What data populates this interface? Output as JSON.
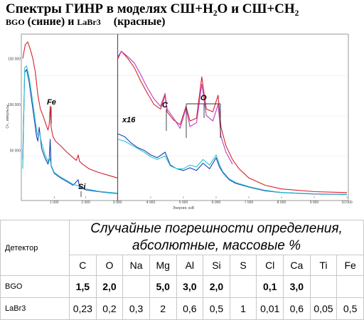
{
  "title": "Спектры ГИНР в моделях СШ+H₂O  и СШ+CH₂",
  "subtitle": {
    "bgo": "BGO",
    "blue": "(синие) и",
    "labr": "LaBr3",
    "red": "(красные)"
  },
  "chart_data": {
    "type": "line",
    "xlabel": "Энергия, кэВ",
    "ylabel": "Сч., импульсы",
    "panels": [
      {
        "xlim": [
          0,
          3000
        ],
        "x_ticks": [
          "1 000",
          "2 000",
          "3 000"
        ],
        "y_ticks": [
          "50 000",
          "100 000",
          "150 000"
        ],
        "ylim": [
          0,
          175000
        ],
        "annotations": [
          {
            "text": "Fe",
            "x": 850,
            "y": 128000
          },
          {
            "text": "Si",
            "x": 1780,
            "y": 45000
          }
        ],
        "series": [
          {
            "color": "#d6202e",
            "x": [
              0,
              80,
              160,
              240,
              320,
              400,
              480,
              560,
              640,
              720,
              800,
              840,
              870,
              900,
              960,
              1040,
              1200,
              1400,
              1600,
              1700,
              1760,
              1800,
              1900,
              2100,
              2400,
              2700,
              3000
            ],
            "y": [
              150000,
              165000,
              168000,
              160000,
              150000,
              135000,
              110000,
              95000,
              88000,
              80000,
              72000,
              78000,
              98000,
              75000,
              65000,
              60000,
              55000,
              48000,
              42000,
              39000,
              45000,
              38000,
              35000,
              30000,
              26000,
              23000,
              20000
            ]
          },
          {
            "color": "#1a3fb0",
            "x": [
              0,
              60,
              120,
              200,
              280,
              360,
              440,
              480,
              520,
              600,
              700,
              800,
              840,
              870,
              900,
              1000,
              1200,
              1400,
              1600,
              1760,
              1800,
              2000,
              2400,
              2800,
              3000
            ],
            "y": [
              40000,
              135000,
              138000,
              125000,
              105000,
              85000,
              65000,
              60000,
              75000,
              52000,
              42000,
              35000,
              40000,
              62000,
              33000,
              25000,
              20000,
              16000,
              12000,
              18000,
              10000,
              7000,
              5000,
              3500,
              3000
            ]
          },
          {
            "color": "#27c4d2",
            "x": [
              0,
              60,
              120,
              200,
              280,
              360,
              440,
              480,
              520,
              600,
              700,
              800,
              850,
              900,
              1000,
              1200,
              1400,
              1600,
              1800,
              2000,
              2400,
              2800,
              3000
            ],
            "y": [
              30000,
              140000,
              142000,
              130000,
              112000,
              92000,
              72000,
              66000,
              70000,
              58000,
              46000,
              38000,
              43000,
              34000,
              26000,
              21000,
              17000,
              13000,
              11000,
              8000,
              5500,
              4000,
              3500
            ]
          }
        ]
      },
      {
        "xlim": [
          3000,
          10000
        ],
        "x_ticks": [
          "4 000",
          "5 000",
          "6 000",
          "7 000",
          "8 000",
          "9 000",
          "10 000"
        ],
        "ylim": [
          0,
          175000
        ],
        "scale_label": "x16",
        "annotations": [
          {
            "text": "C",
            "x": 4440,
            "y": 140000
          },
          {
            "text": "O",
            "x": 5590,
            "y": 155000
          }
        ],
        "series": [
          {
            "color": "#d6202e",
            "x": [
              3000,
              3100,
              3300,
              3500,
              3700,
              3900,
              4100,
              4300,
              4440,
              4500,
              4700,
              4900,
              5080,
              5200,
              5400,
              5560,
              5620,
              5700,
              5900,
              6060,
              6150,
              6300,
              6500,
              6700,
              7000,
              7500,
              8000,
              9000,
              10000
            ],
            "y": [
              150000,
              158000,
              150000,
              140000,
              125000,
              112000,
              100000,
              95000,
              110000,
              92000,
              83000,
              78000,
              98000,
              82000,
              85000,
              130000,
              115000,
              95000,
              92000,
              110000,
              75000,
              55000,
              40000,
              30000,
              20000,
              12000,
              8000,
              5000,
              4000
            ]
          },
          {
            "color": "#b83fbf",
            "x": [
              3000,
              3100,
              3300,
              3500,
              3700,
              3900,
              4100,
              4300,
              4440,
              4500,
              4700,
              4900,
              5080,
              5200,
              5400,
              5560,
              5620,
              5700,
              5900,
              6060,
              6150,
              6300,
              6500
            ],
            "y": [
              152000,
              158000,
              152000,
              145000,
              132000,
              118000,
              106000,
              98000,
              112000,
              95000,
              85000,
              74000,
              96000,
              76000,
              80000,
              122000,
              108000,
              88000,
              82000,
              100000,
              65000,
              48000,
              35000
            ]
          },
          {
            "color": "#1a3fb0",
            "x": [
              3000,
              3200,
              3400,
              3600,
              3800,
              4000,
              4200,
              4440,
              4600,
              4800,
              5000,
              5200,
              5400,
              5600,
              5800,
              6000,
              6100,
              6200,
              6400,
              6600,
              7000,
              7500,
              8000,
              9000,
              10000
            ],
            "y": [
              68000,
              65000,
              58000,
              53000,
              50000,
              45000,
              42000,
              48000,
              34000,
              30000,
              28000,
              31000,
              28000,
              36000,
              30000,
              42000,
              32000,
              26000,
              18000,
              14000,
              10000,
              6000,
              4000,
              2500,
              2000
            ]
          },
          {
            "color": "#27c4d2",
            "x": [
              3000,
              3200,
              3400,
              3600,
              3800,
              4000,
              4200,
              4440,
              4600,
              4800,
              5000,
              5200,
              5400,
              5600,
              5800,
              6000,
              6100,
              6200,
              6400,
              6600,
              7000,
              7500,
              8000,
              9000,
              10000
            ],
            "y": [
              62000,
              60000,
              56000,
              52000,
              48000,
              43000,
              40000,
              44000,
              33000,
              30000,
              30000,
              34000,
              32000,
              40000,
              34000,
              45000,
              35000,
              27000,
              19000,
              15000,
              10500,
              6500,
              4200,
              2700,
              2200
            ]
          }
        ]
      }
    ]
  },
  "table": {
    "detector_header": "Детектор",
    "header_line1": "Случайные погрешности определения,",
    "header_line2": "абсолютные, массовые %",
    "elements": [
      "C",
      "O",
      "Na",
      "Mg",
      "Al",
      "Si",
      "S",
      "Cl",
      "Ca",
      "Ti",
      "Fe"
    ],
    "rows": [
      {
        "detector": "BGO",
        "values": [
          "1,5",
          "2,0",
          "",
          "5,0",
          "3,0",
          "2,0",
          "",
          "0,1",
          "3,0",
          "",
          ""
        ]
      },
      {
        "detector": "LaBr3",
        "values": [
          "0,23",
          "0,2",
          "0,3",
          "2",
          "0,6",
          "0,5",
          "1",
          "0,01",
          "0,6",
          "0,05",
          "0,5"
        ]
      }
    ]
  }
}
